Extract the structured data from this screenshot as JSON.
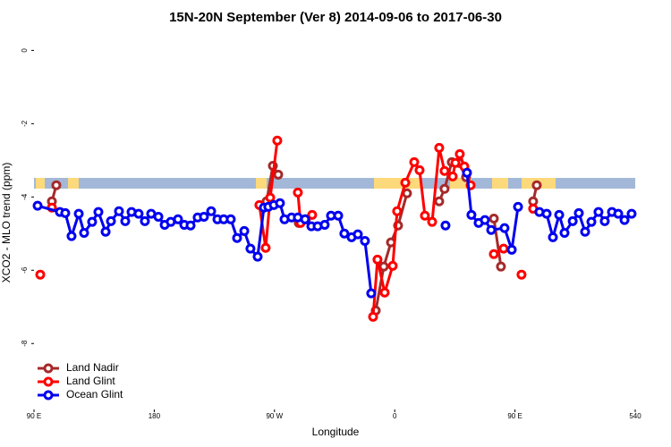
{
  "chart_data": {
    "type": "line",
    "title": "15N-20N September (Ver 8)   2014-09-06 to 2017-06-30",
    "x_label": "Longitude",
    "y_label": "XCO2 - MLO trend (ppm)",
    "xlim": [
      90,
      540
    ],
    "ylim": [
      -9.8,
      0.4
    ],
    "xticks": [
      {
        "value": 90,
        "label": "90 E"
      },
      180,
      {
        "value": 270,
        "label": "90 W"
      },
      {
        "value": 360,
        "label": "0"
      },
      {
        "value": 450,
        "label": "90 E"
      },
      540
    ],
    "yticks": [
      0,
      -2,
      -4,
      -6,
      -8
    ],
    "legend": "bottom-left",
    "series": [
      {
        "name": "Land Nadir",
        "color": "#a52a2a",
        "x": [
          103.4,
          106.7,
          null,
          264.1,
          268.8,
          272.8,
          null,
          288.2,
          293.5,
          null,
          345.8,
          351.8,
          357.2,
          362.5,
          369.2,
          null,
          393.3,
          397.3,
          402.7,
          408.1,
          413.4,
          null,
          434.2,
          439.5,
          null,
          463.6,
          466.3
        ],
        "values": [
          -4.12,
          -3.68,
          null,
          -4.12,
          -3.15,
          -3.39,
          null,
          -4.71,
          -4.61,
          null,
          -7.1,
          -5.9,
          -5.24,
          -4.78,
          -3.9,
          null,
          -4.12,
          -3.78,
          -3.05,
          -3.07,
          -3.46,
          null,
          -4.59,
          -5.9,
          null,
          -4.12,
          -3.68
        ]
      },
      {
        "name": "Land Glint",
        "color": "#ff0000",
        "x": [
          94.7,
          null,
          103.4,
          null,
          258.7,
          263.4,
          266.8,
          272.1,
          null,
          287.5,
          289.5,
          null,
          298.2,
          null,
          343.8,
          347.1,
          352.5,
          358.5,
          361.8,
          367.9,
          374.6,
          378.6,
          382.6,
          388.0,
          393.3,
          397.3,
          403.4,
          405.4,
          408.7,
          412.1,
          416.8,
          null,
          434.2,
          441.5,
          null,
          454.9,
          null,
          463.6
        ],
        "values": [
          -6.12,
          null,
          -4.29,
          null,
          -4.22,
          -5.39,
          -4.02,
          -2.46,
          null,
          -3.88,
          -4.71,
          null,
          -4.49,
          null,
          -7.27,
          -5.71,
          -6.61,
          -5.88,
          -4.39,
          -3.61,
          -3.05,
          -3.27,
          -4.51,
          -4.68,
          -2.66,
          -3.29,
          -3.44,
          -3.07,
          -2.83,
          -3.17,
          -3.68,
          null,
          -5.56,
          -5.41,
          null,
          -6.12,
          null,
          -4.32
        ]
      },
      {
        "name": "Ocean Glint",
        "color": "#0000ee",
        "x": [
          92.7,
          109.4,
          113.4,
          118.1,
          123.5,
          127.5,
          133.5,
          138.2,
          143.6,
          147.6,
          153.6,
          158.3,
          163.0,
          168.3,
          173.0,
          177.7,
          183.1,
          187.8,
          192.4,
          197.8,
          202.5,
          207.2,
          212.5,
          217.2,
          222.6,
          227.3,
          232.0,
          237.3,
          242.0,
          247.4,
          252.0,
          257.4,
          262.1,
          265.4,
          269.5,
          274.1,
          277.5,
          282.8,
          287.5,
          292.9,
          297.6,
          302.3,
          307.6,
          312.3,
          317.7,
          322.3,
          327.7,
          332.4,
          337.7,
          342.4,
          null,
          398.0,
          null,
          414.1,
          417.4,
          422.8,
          427.5,
          432.2,
          442.2,
          447.6,
          452.3,
          null,
          468.3,
          473.7,
          478.4,
          483.1,
          487.1,
          493.2,
          497.8,
          502.5,
          507.2,
          512.5,
          517.2,
          522.6,
          527.3,
          532.0,
          537.3
        ],
        "values": [
          -4.24,
          -4.41,
          -4.44,
          -5.07,
          -4.46,
          -4.98,
          -4.68,
          -4.41,
          -4.95,
          -4.66,
          -4.39,
          -4.66,
          -4.41,
          -4.46,
          -4.66,
          -4.46,
          -4.54,
          -4.76,
          -4.68,
          -4.61,
          -4.76,
          -4.78,
          -4.56,
          -4.54,
          -4.39,
          -4.61,
          -4.61,
          -4.61,
          -5.12,
          -4.93,
          -5.41,
          -5.63,
          -4.29,
          -4.27,
          -4.22,
          -4.17,
          -4.61,
          -4.56,
          -4.56,
          -4.61,
          -4.8,
          -4.8,
          -4.76,
          -4.51,
          -4.51,
          -5.0,
          -5.1,
          -5.02,
          -5.2,
          -6.63,
          null,
          -4.78,
          null,
          -3.34,
          -4.49,
          -4.71,
          -4.63,
          -4.9,
          -4.85,
          -5.44,
          -4.27,
          null,
          -4.41,
          -4.46,
          -5.1,
          -4.49,
          -4.98,
          -4.66,
          -4.44,
          -4.95,
          -4.68,
          -4.41,
          -4.66,
          -4.41,
          -4.46,
          -4.63,
          -4.46
        ]
      }
    ]
  }
}
